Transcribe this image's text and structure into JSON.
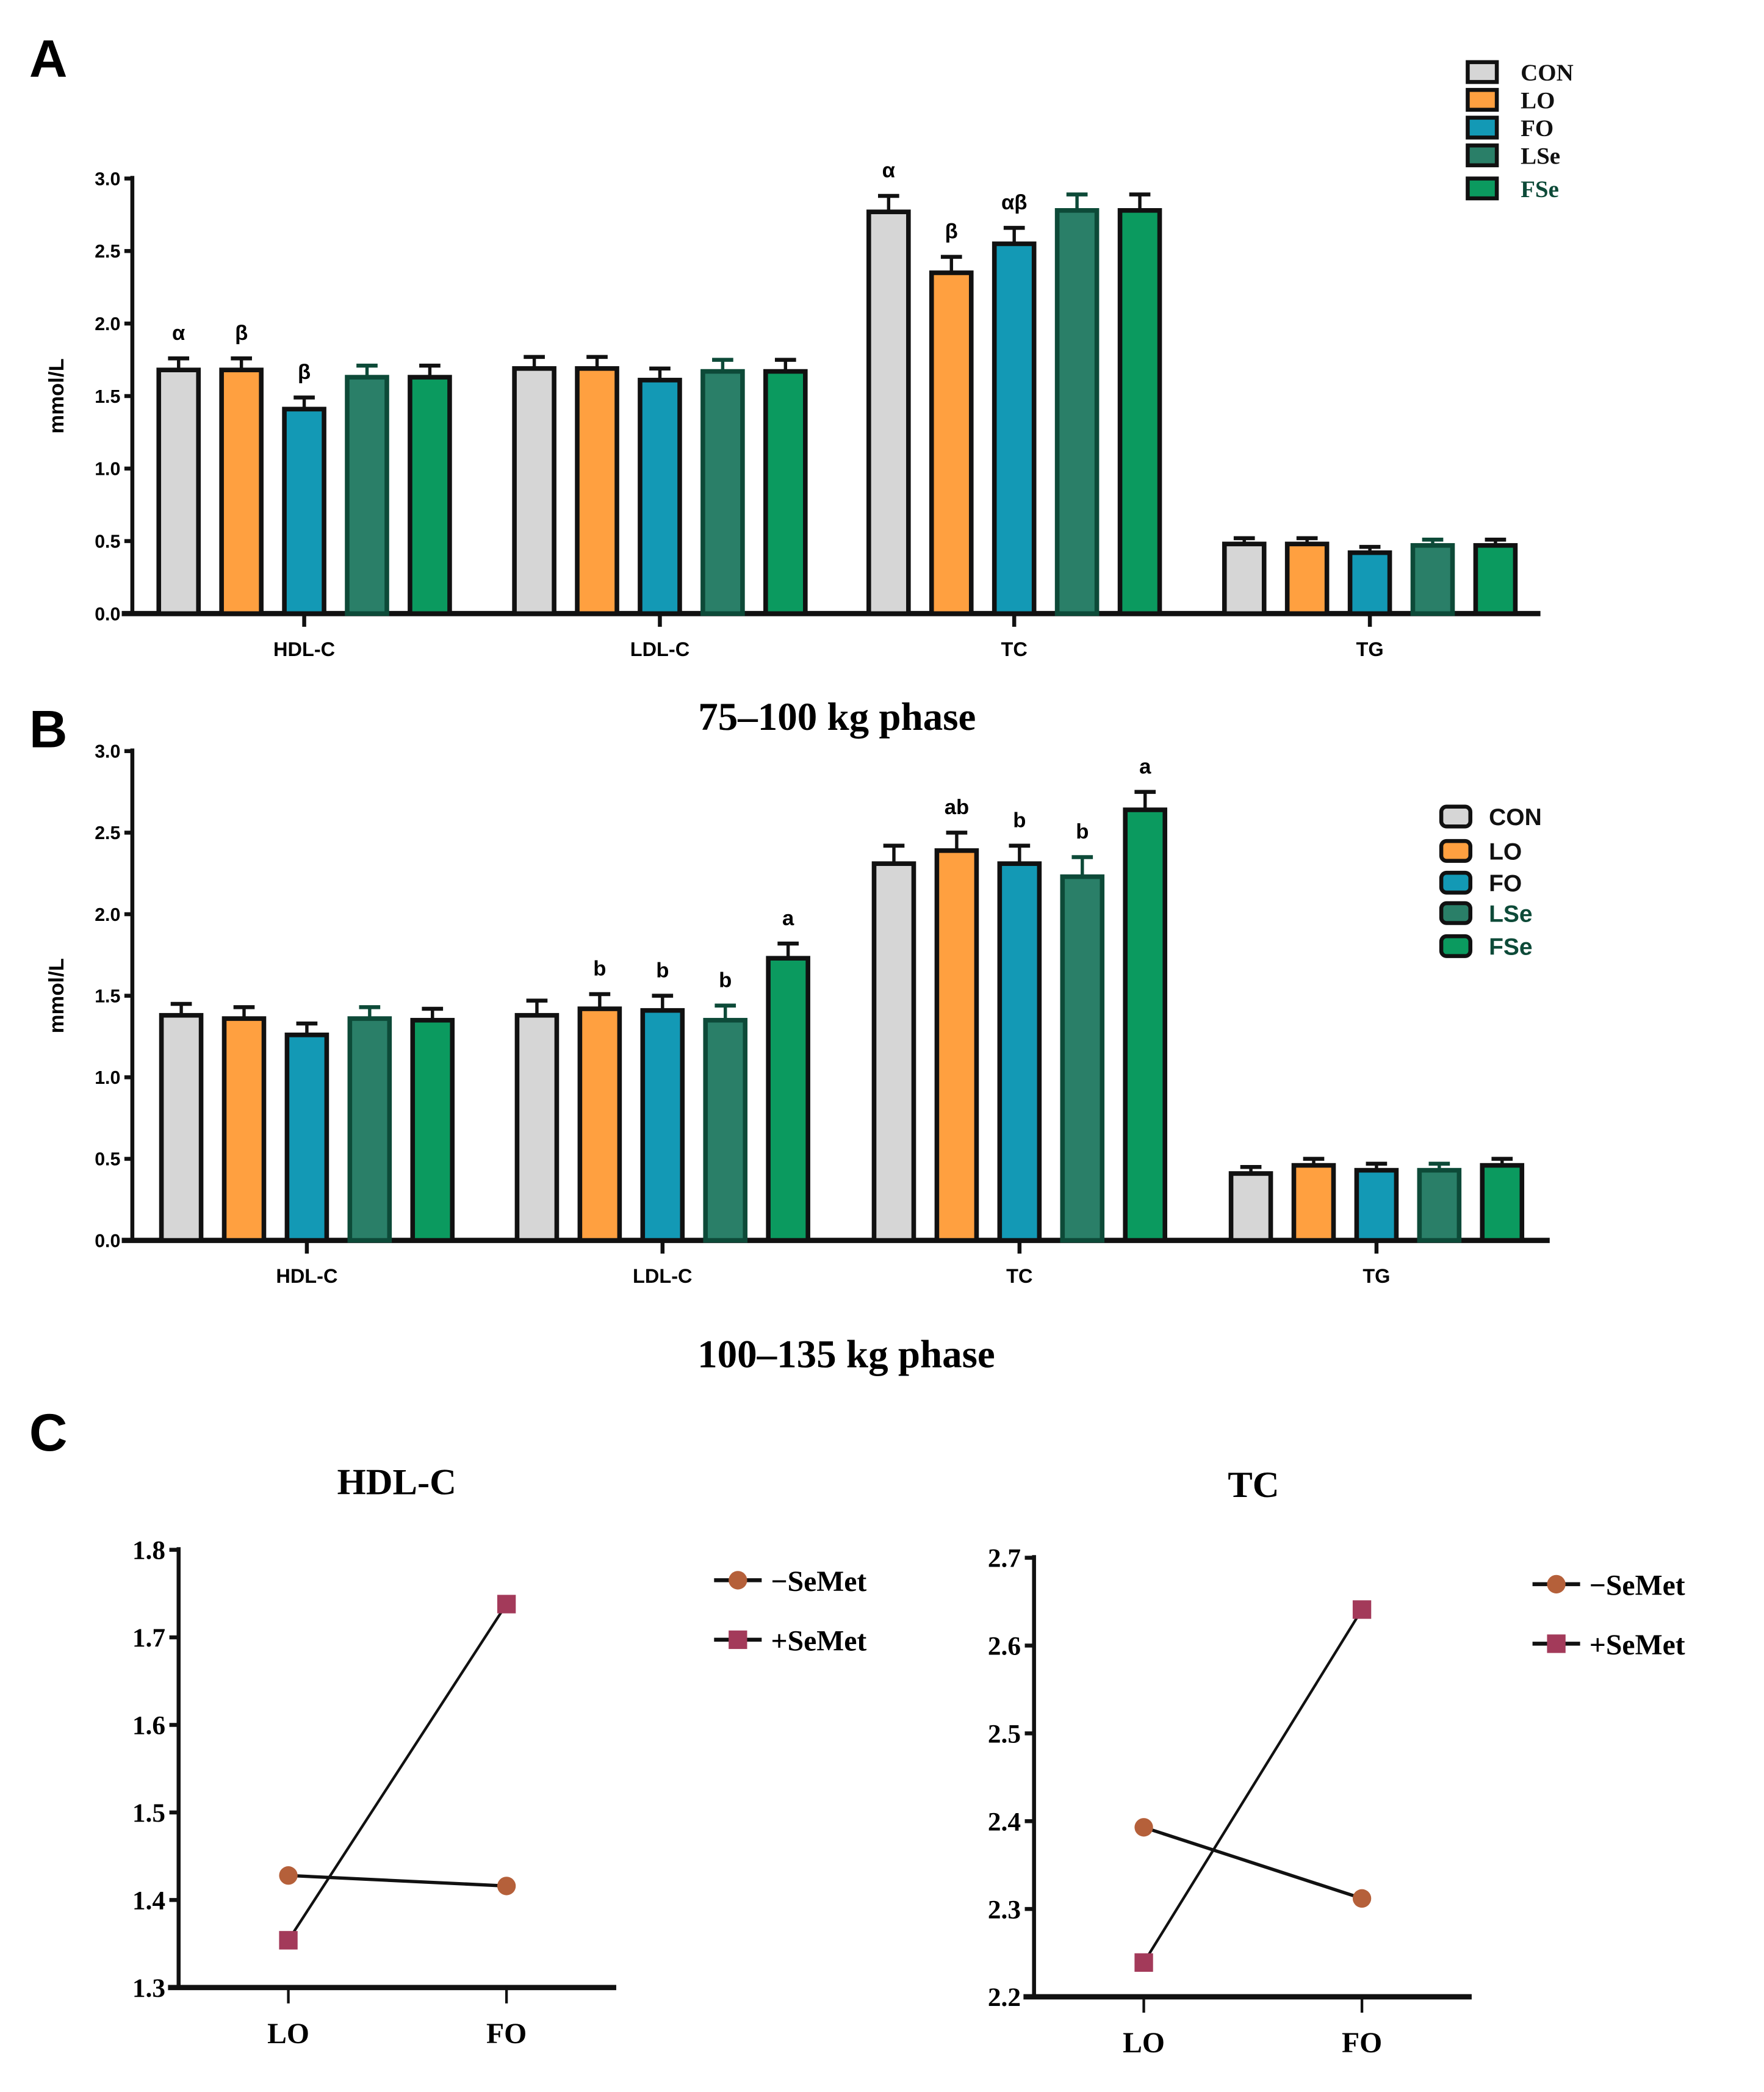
{
  "chart_data": [
    {
      "panel": "A",
      "type": "bar",
      "title": "75–100 kg phase",
      "ylabel": "mmol/L",
      "ylim": [
        0,
        3.0
      ],
      "yticks": [
        "0.0",
        "0.5",
        "1.0",
        "1.5",
        "2.0",
        "2.5",
        "3.0"
      ],
      "categories": [
        "HDL-C",
        "LDL-C",
        "TC",
        "TG"
      ],
      "legend_position": "top-right",
      "series": [
        {
          "name": "CON",
          "color": "#d6d6d6",
          "edge": "#111111",
          "values": [
            1.68,
            1.69,
            2.77,
            0.48
          ],
          "errors": [
            0.08,
            0.08,
            0.11,
            0.04
          ],
          "labels": [
            "α",
            "",
            "α",
            ""
          ]
        },
        {
          "name": "LO",
          "color": "#ffa040",
          "edge": "#111111",
          "values": [
            1.68,
            1.69,
            2.35,
            0.48
          ],
          "errors": [
            0.08,
            0.08,
            0.11,
            0.04
          ],
          "labels": [
            "β",
            "",
            "β",
            ""
          ]
        },
        {
          "name": "FO",
          "color": "#1399b5",
          "edge": "#111111",
          "values": [
            1.41,
            1.61,
            2.55,
            0.42
          ],
          "errors": [
            0.08,
            0.08,
            0.11,
            0.04
          ],
          "labels": [
            "β",
            "",
            "αβ",
            ""
          ]
        },
        {
          "name": "LSe",
          "color": "#2a7f68",
          "edge": "#0d4a38",
          "values": [
            1.63,
            1.67,
            2.78,
            0.47
          ],
          "errors": [
            0.08,
            0.08,
            0.11,
            0.04
          ],
          "labels": [
            "",
            "",
            "",
            ""
          ]
        },
        {
          "name": "FSe",
          "color": "#0b9a5f",
          "edge": "#111111",
          "values": [
            1.63,
            1.67,
            2.78,
            0.47
          ],
          "errors": [
            0.08,
            0.08,
            0.11,
            0.04
          ],
          "labels": [
            "",
            "",
            "",
            ""
          ]
        }
      ]
    },
    {
      "panel": "B",
      "type": "bar",
      "title": "100–135 kg phase",
      "ylabel": "mmol/L",
      "ylim": [
        0,
        3.0
      ],
      "yticks": [
        "0.0",
        "0.5",
        "1.0",
        "1.5",
        "2.0",
        "2.5",
        "3.0"
      ],
      "categories": [
        "HDL-C",
        "LDL-C",
        "TC",
        "TG"
      ],
      "legend_position": "right",
      "series": [
        {
          "name": "CON",
          "color": "#d6d6d6",
          "edge": "#111111",
          "values": [
            1.38,
            1.38,
            2.31,
            0.41
          ],
          "errors": [
            0.07,
            0.09,
            0.11,
            0.04
          ],
          "labels": [
            "",
            "",
            "",
            ""
          ]
        },
        {
          "name": "LO",
          "color": "#ffa040",
          "edge": "#111111",
          "values": [
            1.36,
            1.42,
            2.39,
            0.46
          ],
          "errors": [
            0.07,
            0.09,
            0.11,
            0.04
          ],
          "labels": [
            "",
            "b",
            "ab",
            ""
          ]
        },
        {
          "name": "FO",
          "color": "#1399b5",
          "edge": "#111111",
          "values": [
            1.26,
            1.41,
            2.31,
            0.43
          ],
          "errors": [
            0.07,
            0.09,
            0.11,
            0.04
          ],
          "labels": [
            "",
            "b",
            "b",
            ""
          ]
        },
        {
          "name": "LSe",
          "color": "#2a7f68",
          "edge": "#0d4a38",
          "values": [
            1.36,
            1.35,
            2.23,
            0.43
          ],
          "errors": [
            0.07,
            0.09,
            0.12,
            0.04
          ],
          "labels": [
            "",
            "b",
            "b",
            ""
          ]
        },
        {
          "name": "FSe",
          "color": "#0b9a5f",
          "edge": "#111111",
          "values": [
            1.35,
            1.73,
            2.64,
            0.46
          ],
          "errors": [
            0.07,
            0.09,
            0.11,
            0.04
          ],
          "labels": [
            "",
            "a",
            "a",
            ""
          ]
        }
      ]
    },
    {
      "panel": "C",
      "type": "line",
      "title": "HDL-C",
      "x": [
        "LO",
        "FO"
      ],
      "ylim": [
        1.3,
        1.8
      ],
      "yticks": [
        "1.3",
        "1.4",
        "1.5",
        "1.6",
        "1.7",
        "1.8"
      ],
      "series": [
        {
          "name": "−SeMet",
          "marker": "circle",
          "color": "#b5603a",
          "values": [
            1.428,
            1.416
          ]
        },
        {
          "name": "+SeMet",
          "marker": "square",
          "color": "#a33a5a",
          "values": [
            1.354,
            1.738
          ]
        }
      ]
    },
    {
      "panel": "C",
      "type": "line",
      "title": "TC",
      "x": [
        "LO",
        "FO"
      ],
      "ylim": [
        2.2,
        2.7
      ],
      "yticks": [
        "2.2",
        "2.3",
        "2.4",
        "2.5",
        "2.6",
        "2.7"
      ],
      "series": [
        {
          "name": "−SeMet",
          "marker": "circle",
          "color": "#b5603a",
          "values": [
            2.393,
            2.312
          ]
        },
        {
          "name": "+SeMet",
          "marker": "square",
          "color": "#a33a5a",
          "values": [
            2.239,
            2.641
          ]
        }
      ]
    }
  ],
  "panel_labels": [
    "A",
    "B",
    "C"
  ]
}
